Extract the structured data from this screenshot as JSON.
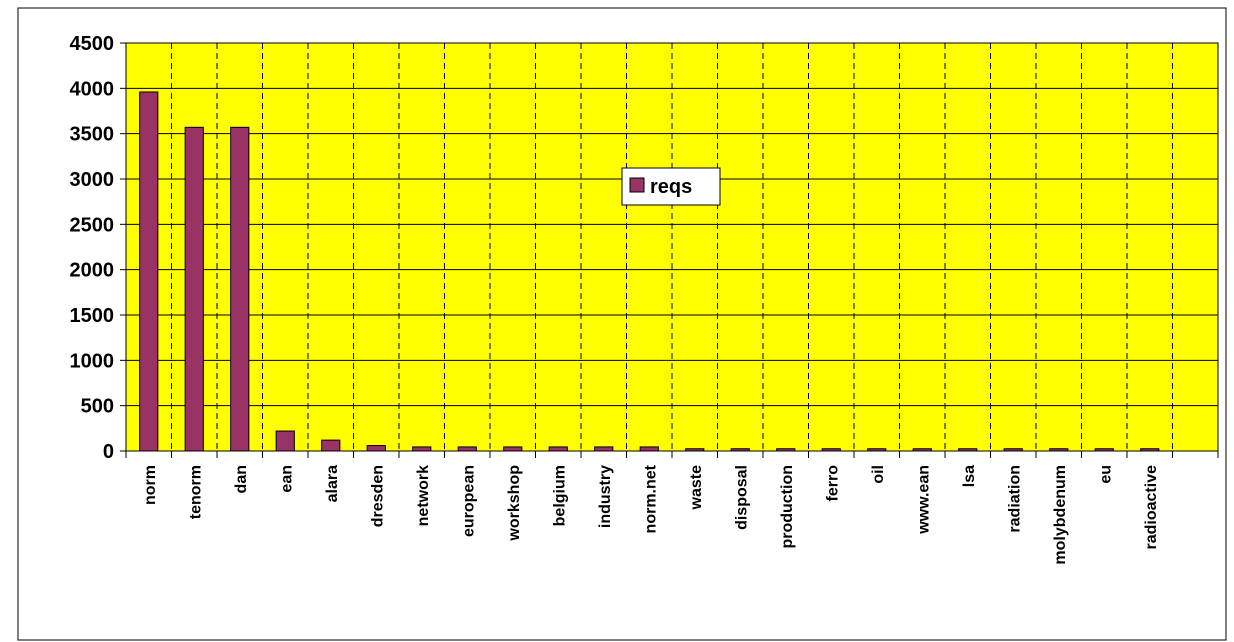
{
  "chart_data": {
    "type": "bar",
    "categories": [
      "norm",
      "tenorm",
      "dan",
      "ean",
      "alara",
      "dresden",
      "network",
      "european",
      "workshop",
      "belgium",
      "industry",
      "norm.net",
      "waste",
      "disposal",
      "production",
      "ferro",
      "oil",
      "www.ean",
      "lsa",
      "radiation",
      "molybdenum",
      "eu",
      "radioactive",
      null
    ],
    "series": [
      {
        "name": "reqs",
        "color": "#993366",
        "values": [
          3960,
          3570,
          3570,
          220,
          120,
          60,
          45,
          45,
          45,
          45,
          45,
          45,
          25,
          25,
          25,
          25,
          25,
          25,
          25,
          25,
          25,
          25,
          25,
          null
        ]
      }
    ],
    "ylim": [
      0,
      4500
    ],
    "yticks": [
      0,
      500,
      1000,
      1500,
      2000,
      2500,
      3000,
      3500,
      4000,
      4500
    ],
    "grid": true,
    "plot_color": "#ffff00"
  }
}
